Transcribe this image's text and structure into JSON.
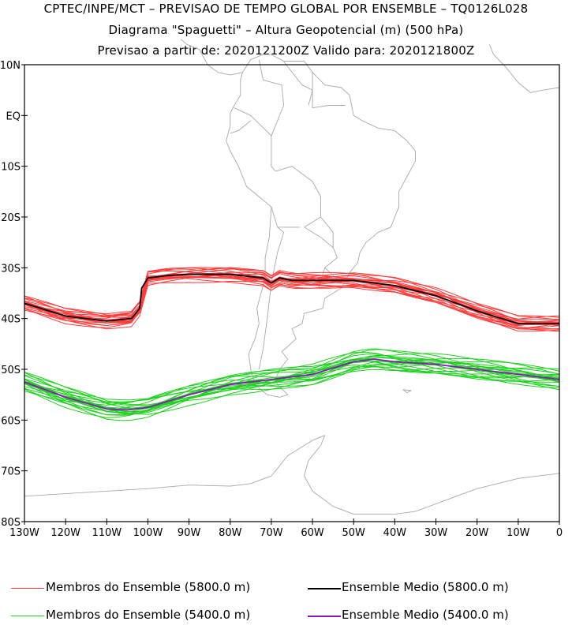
{
  "title": {
    "line1": "CPTEC/INPE/MCT – PREVISAO DE TEMPO GLOBAL POR ENSEMBLE – TQ0126L028",
    "line2": "Diagrama \"Spaguetti\" – Altura Geopotencial (m) (500 hPa)",
    "line3": "Previsao a partir de: 2020121200Z  Valido para: 2020121800Z"
  },
  "axes": {
    "lat_labels": [
      "10N",
      "EQ",
      "10S",
      "20S",
      "30S",
      "40S",
      "50S",
      "60S",
      "70S",
      "80S"
    ],
    "lat_values": [
      10,
      0,
      -10,
      -20,
      -30,
      -40,
      -50,
      -60,
      -70,
      -80
    ],
    "lon_labels": [
      "130W",
      "120W",
      "110W",
      "100W",
      "90W",
      "80W",
      "70W",
      "60W",
      "50W",
      "40W",
      "30W",
      "20W",
      "10W",
      "0"
    ],
    "lon_values": [
      -130,
      -120,
      -110,
      -100,
      -90,
      -80,
      -70,
      -60,
      -50,
      -40,
      -30,
      -20,
      -10,
      0
    ]
  },
  "colors": {
    "members_5800": "#ff3b3b",
    "mean_5800": "#000000",
    "members_5400": "#1fd01f",
    "mean_5400": "#8a1ab8",
    "coast": "#a8a8a8"
  },
  "legend": {
    "members_5800": "Membros do Ensemble (5800.0 m)",
    "mean_5800": "Ensemble Medio (5800.0 m)",
    "members_5400": "Membros do Ensemble (5400.0 m)",
    "mean_5400": "Ensemble Medio (5400.0 m)"
  },
  "map_data": {
    "mean_5800": [
      [
        -130,
        -37
      ],
      [
        -120,
        -39.5
      ],
      [
        -110,
        -40.5
      ],
      [
        -104,
        -40
      ],
      [
        -102,
        -38
      ],
      [
        -101.5,
        -34
      ],
      [
        -100,
        -32
      ],
      [
        -95,
        -31.5
      ],
      [
        -90,
        -31.3
      ],
      [
        -80,
        -31.3
      ],
      [
        -72,
        -32
      ],
      [
        -70,
        -33
      ],
      [
        -68,
        -32
      ],
      [
        -65,
        -32.5
      ],
      [
        -60,
        -32.5
      ],
      [
        -50,
        -32.5
      ],
      [
        -40,
        -33.5
      ],
      [
        -30,
        -35.5
      ],
      [
        -20,
        -38.5
      ],
      [
        -10,
        -41
      ],
      [
        0,
        -41
      ]
    ],
    "mean_5400": [
      [
        -130,
        -52.5
      ],
      [
        -120,
        -55.5
      ],
      [
        -110,
        -57.8
      ],
      [
        -105,
        -58
      ],
      [
        -100,
        -57.5
      ],
      [
        -90,
        -55
      ],
      [
        -80,
        -53
      ],
      [
        -70,
        -52
      ],
      [
        -60,
        -51
      ],
      [
        -50,
        -48.5
      ],
      [
        -45,
        -48
      ],
      [
        -40,
        -48.5
      ],
      [
        -30,
        -49
      ],
      [
        -20,
        -50
      ],
      [
        -10,
        -51
      ],
      [
        0,
        -52
      ]
    ]
  }
}
